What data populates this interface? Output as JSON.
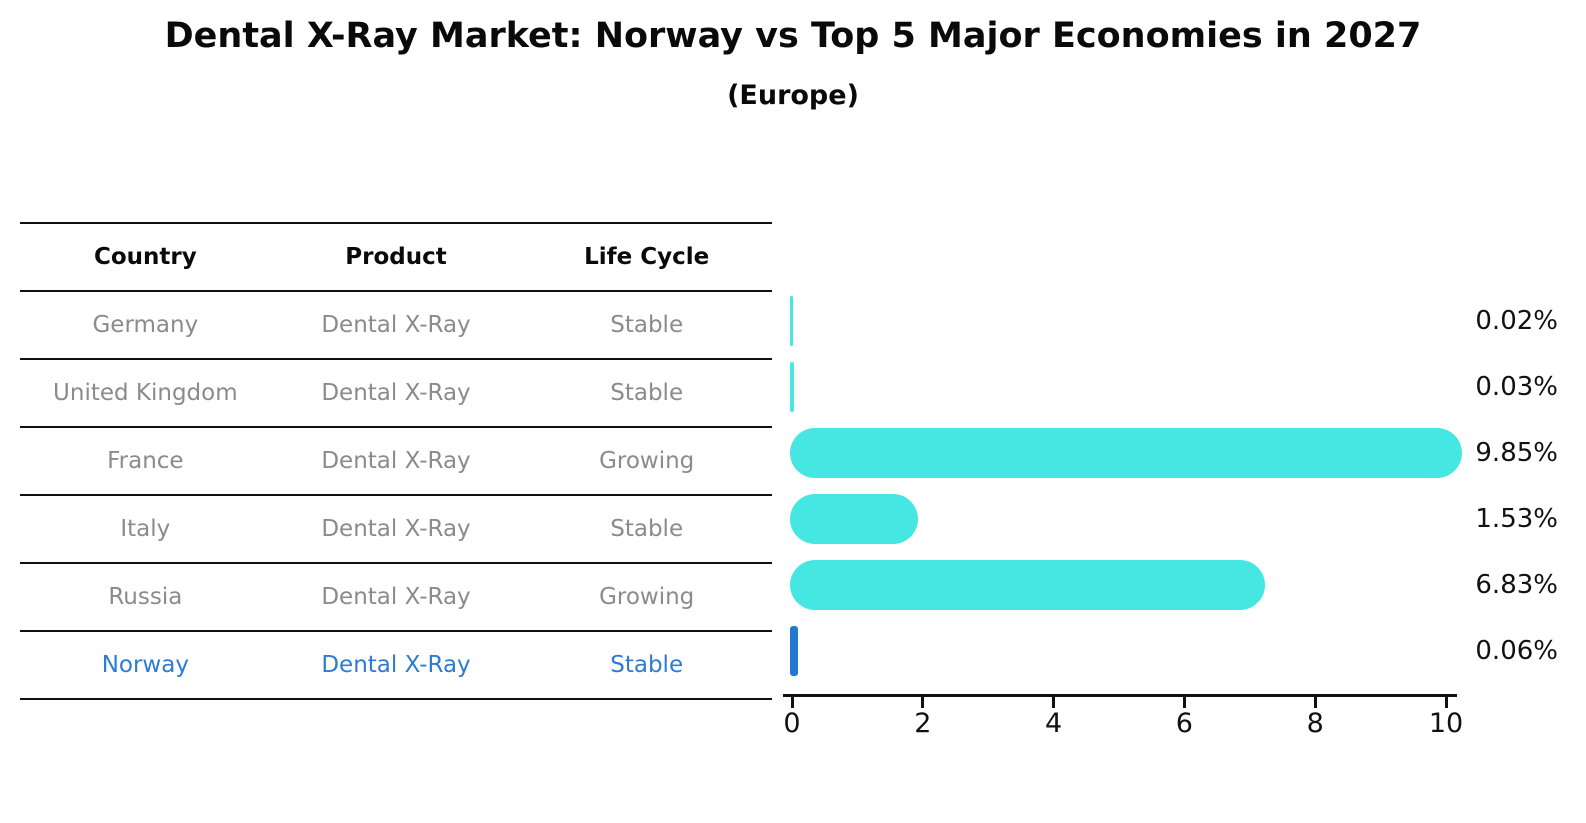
{
  "title": "Dental X-Ray Market: Norway vs Top 5 Major Economies in 2027",
  "subtitle": "(Europe)",
  "colors": {
    "bar_default": "#46e6e2",
    "bar_highlight": "#2279d2",
    "row_text": "#8b8b8b",
    "row_highlight_text": "#2e7bd2",
    "text": "#0a0a0a"
  },
  "table": {
    "headers": [
      "Country",
      "Product",
      "Life Cycle"
    ],
    "rows": [
      {
        "country": "Germany",
        "product": "Dental X-Ray",
        "life_cycle": "Stable",
        "highlight": false
      },
      {
        "country": "United Kingdom",
        "product": "Dental X-Ray",
        "life_cycle": "Stable",
        "highlight": false
      },
      {
        "country": "France",
        "product": "Dental X-Ray",
        "life_cycle": "Growing",
        "highlight": false
      },
      {
        "country": "Italy",
        "product": "Dental X-Ray",
        "life_cycle": "Stable",
        "highlight": false
      },
      {
        "country": "Russia",
        "product": "Dental X-Ray",
        "life_cycle": "Growing",
        "highlight": false
      },
      {
        "country": "Norway",
        "product": "Dental X-Ray",
        "life_cycle": "Stable",
        "highlight": true
      }
    ]
  },
  "chart_data": {
    "type": "bar",
    "orientation": "horizontal",
    "title": "Dental X-Ray Market: Norway vs Top 5 Major Economies in 2027",
    "subtitle": "(Europe)",
    "categories": [
      "Germany",
      "United Kingdom",
      "France",
      "Italy",
      "Russia",
      "Norway"
    ],
    "values": [
      0.02,
      0.03,
      9.85,
      1.53,
      6.83,
      0.06
    ],
    "value_labels": [
      "0.02%",
      "0.03%",
      "9.85%",
      "1.53%",
      "6.83%",
      "0.06%"
    ],
    "highlight_category": "Norway",
    "xlabel": "",
    "ylabel": "",
    "xlim": [
      0,
      10.3
    ],
    "xticks": [
      0,
      2,
      4,
      6,
      8,
      10
    ],
    "grid": false,
    "legend": false
  }
}
